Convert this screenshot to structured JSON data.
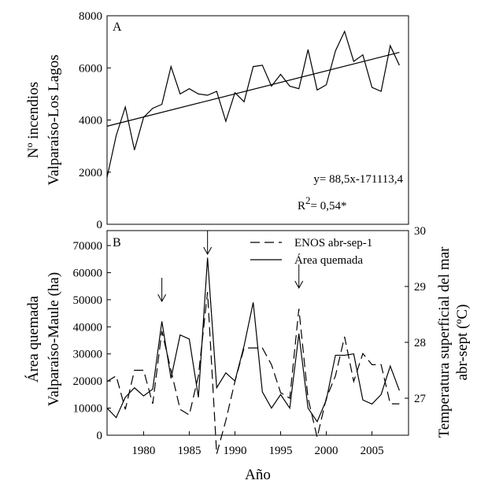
{
  "chart_data": [
    {
      "type": "line",
      "panel_label": "A",
      "ylabel_line1": "Nº incendios",
      "ylabel_line2": "Valparaíso-Los Lagos",
      "ylim": [
        0,
        8000
      ],
      "xlim": [
        1976,
        2009
      ],
      "yticks": [
        "0",
        "2000",
        "4000",
        "6000",
        "8000"
      ],
      "x": [
        1976,
        1977,
        1978,
        1979,
        1980,
        1981,
        1982,
        1983,
        1984,
        1985,
        1986,
        1987,
        1988,
        1989,
        1990,
        1991,
        1992,
        1993,
        1994,
        1995,
        1996,
        1997,
        1998,
        1999,
        2000,
        2001,
        2002,
        2003,
        2004,
        2005,
        2006,
        2007,
        2008
      ],
      "series": [
        {
          "values": [
            1800,
            3400,
            4500,
            2850,
            4100,
            4450,
            4600,
            6050,
            5000,
            5200,
            5000,
            4950,
            5100,
            3950,
            5050,
            4700,
            6050,
            6100,
            5300,
            5750,
            5300,
            5200,
            6700,
            5150,
            5350,
            6650,
            7400,
            6250,
            6500,
            5250,
            5100,
            6850,
            6100
          ]
        }
      ],
      "trendline": {
        "slope": 88.5,
        "intercept": -171113.4
      },
      "equation_text": "y= 88,5x-171113,4",
      "r2_prefix": "R",
      "r2_sup": "2",
      "r2_suffix": "= 0,54*"
    },
    {
      "type": "line",
      "panel_label": "B",
      "ylabel_line1": "Área quemada",
      "ylabel_line2": "Valparaíso-Maule (ha)",
      "y2label_line1": "Temperatura superficial del mar",
      "y2label_line2": "abr-sept (ºC)",
      "xlabel": "Año",
      "ylim": [
        0,
        70000
      ],
      "y2lim": [
        26,
        30
      ],
      "xlim": [
        1976,
        2009
      ],
      "yticks": [
        "0",
        "10000",
        "20000",
        "30000",
        "40000",
        "50000",
        "60000",
        "70000"
      ],
      "y2ticks": [
        "27",
        "28",
        "29",
        "30"
      ],
      "xticks": [
        "1980",
        "1985",
        "1990",
        "1995",
        "2000",
        "2005"
      ],
      "x": [
        1976,
        1977,
        1978,
        1979,
        1980,
        1981,
        1982,
        1983,
        1984,
        1985,
        1986,
        1987,
        1988,
        1989,
        1990,
        1991,
        1992,
        1993,
        1994,
        1995,
        1996,
        1997,
        1998,
        1999,
        2000,
        2001,
        2002,
        2003,
        2004,
        2005,
        2006,
        2007,
        2008
      ],
      "series": [
        {
          "name": "ENOS abr-sep-1",
          "axis": "right",
          "style": "dashed",
          "values": [
            27.3,
            27.4,
            26.8,
            27.5,
            27.5,
            26.9,
            28.2,
            27.5,
            26.8,
            26.7,
            27.4,
            28.9,
            26.0,
            26.6,
            27.3,
            27.9,
            27.9,
            27.9,
            27.6,
            27.1,
            27.0,
            28.6,
            27.0,
            26.3,
            27.0,
            27.4,
            28.1,
            27.3,
            27.8,
            27.6,
            27.6,
            26.9,
            26.9
          ]
        },
        {
          "name": "Área quemada",
          "axis": "left",
          "style": "solid",
          "values": [
            10000,
            6500,
            14000,
            17500,
            14500,
            17000,
            42000,
            21000,
            37000,
            35500,
            14000,
            65500,
            17500,
            23000,
            20000,
            33000,
            49000,
            16000,
            10000,
            15000,
            10000,
            37500,
            10000,
            5000,
            13000,
            29500,
            29500,
            30000,
            13000,
            11500,
            15000,
            25500,
            16500
          ]
        }
      ],
      "arrows_at_years": [
        1982,
        1987,
        1997
      ]
    }
  ]
}
